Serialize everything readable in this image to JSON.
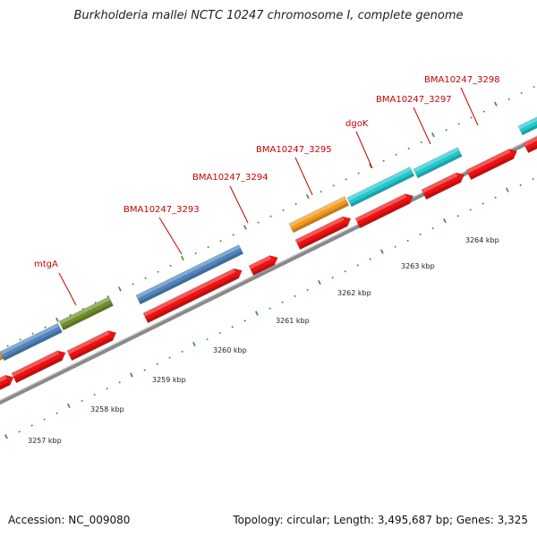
{
  "title": "Burkholderia mallei NCTC 10247 chromosome I, complete genome",
  "footer": {
    "accession": "Accession: NC_009080",
    "stats": "Topology: circular; Length: 3,495,687 bp; Genes: 3,325"
  },
  "colors": {
    "backbone": "#8a8a8a",
    "cds": "#ee1111",
    "ticks": "#2f8f2f",
    "label": "#cc0000",
    "orange": "#f29a1d",
    "steelblue": "#4f84bd",
    "olive": "#6f8f2a",
    "cyan": "#20c9cf"
  },
  "scale_labels": [
    "3257 kbp",
    "3258 kbp",
    "3259 kbp",
    "3260 kbp",
    "3261 kbp",
    "3262 kbp",
    "3263 kbp",
    "3264 kbp"
  ],
  "gene_labels": [
    "mtgA",
    "BMA10247_3293",
    "BMA10247_3294",
    "BMA10247_3295",
    "dgoK",
    "BMA10247_3297",
    "BMA10247_3298"
  ]
}
